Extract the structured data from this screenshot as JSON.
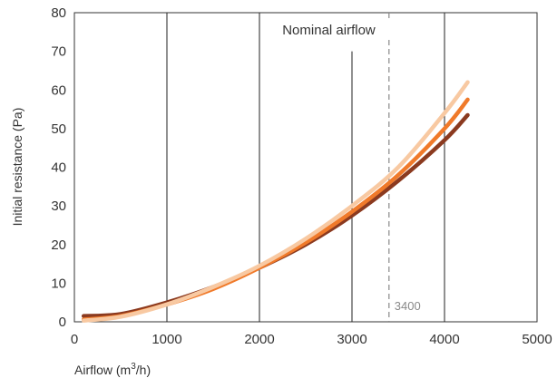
{
  "chart_data": {
    "type": "line",
    "title": "",
    "xlabel": "Airflow (m",
    "xlabel_sup": "3",
    "xlabel_tail": "/h)",
    "ylabel": "Initial resistance (Pa)",
    "xlim": [
      0,
      5000
    ],
    "ylim": [
      0,
      80
    ],
    "xticks": [
      0,
      1000,
      2000,
      3000,
      4000,
      5000
    ],
    "yticks": [
      0,
      10,
      20,
      30,
      40,
      50,
      60,
      70,
      80
    ],
    "grid": "vertical",
    "legend": "none",
    "annotations": {
      "nominal_label": "Nominal airflow",
      "nominal_x": 3400,
      "nominal_value_label": "3400"
    },
    "series": [
      {
        "color": "#8B3A1F",
        "x": [
          100,
          500,
          1000,
          1500,
          2000,
          2500,
          3000,
          3500,
          4000,
          4250
        ],
        "y": [
          1.5,
          2,
          5,
          9,
          14,
          20,
          27.5,
          36.5,
          47,
          53.5
        ]
      },
      {
        "color": "#F07A2A",
        "x": [
          100,
          500,
          1000,
          1500,
          2000,
          2500,
          3000,
          3500,
          4000,
          4250
        ],
        "y": [
          0.6,
          1.5,
          4.5,
          8.5,
          14,
          20.5,
          28.5,
          38,
          50,
          57.5
        ]
      },
      {
        "color": "#F8C9A2",
        "x": [
          100,
          500,
          1000,
          1500,
          2000,
          2500,
          3000,
          3500,
          4000,
          4250
        ],
        "y": [
          0.3,
          1.3,
          4.5,
          9,
          14.5,
          21.5,
          30,
          40,
          54,
          62
        ]
      }
    ]
  }
}
